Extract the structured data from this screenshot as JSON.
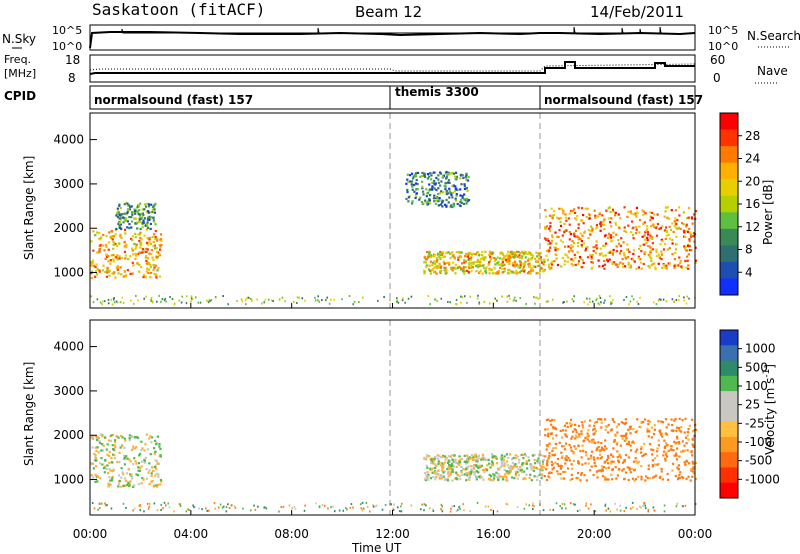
{
  "header": {
    "station": "Saskatoon (fitACF)",
    "beam": "Beam 12",
    "date": "14/Feb/2011"
  },
  "top_panels": {
    "nsky_label": "N.Sky",
    "nsky_ticks": [
      "10^5",
      "10^0"
    ],
    "nsearch_label": "N.Search",
    "nsearch_ticks": [
      "10^5",
      "10^0"
    ],
    "freq_label_1": "Freq.",
    "freq_label_2": "[MHz]",
    "freq_ticks": [
      "18",
      "8"
    ],
    "nave_label": "Nave",
    "nave_ticks": [
      "60",
      "0"
    ],
    "cpid_label": "CPID",
    "modes": [
      {
        "label": "normalsound (fast) 157",
        "start_h": 0
      },
      {
        "label": "themis 3300",
        "start_h": 12
      },
      {
        "label": "normalsound (fast) 157",
        "start_h": 18
      }
    ]
  },
  "x_axis": {
    "ticks": [
      "00:00",
      "04:00",
      "08:00",
      "12:00",
      "16:00",
      "20:00",
      "00:00"
    ],
    "tick_hours": [
      0,
      4,
      8,
      12,
      16,
      20,
      24
    ],
    "label": "Time UT"
  },
  "power_panel": {
    "ylabel": "Slant Range [km]",
    "yticks": [
      "4000",
      "3000",
      "2000",
      "1000"
    ],
    "colorbar_label": "Power [dB]",
    "colorbar_ticks": [
      "28",
      "24",
      "20",
      "16",
      "12",
      "8",
      "4"
    ],
    "colorbar_colors": [
      "#ff0000",
      "#ff3300",
      "#ff7a00",
      "#ffb000",
      "#e8d000",
      "#b6cf00",
      "#5fbf3f",
      "#3a8a58",
      "#2f6f6f",
      "#1c4fb0",
      "#1030ff"
    ]
  },
  "velocity_panel": {
    "ylabel": "Slant Range [km]",
    "yticks": [
      "4000",
      "3000",
      "2000",
      "1000"
    ],
    "colorbar_label": "Velocity [m s^-1]",
    "colorbar_ticks": [
      "1000",
      "500",
      "100",
      "25",
      "-25",
      "-100",
      "-500",
      "-1000"
    ],
    "colorbar_colors": [
      "#1a3cc8",
      "#3a6fb0",
      "#2f8a6a",
      "#4fb94f",
      "#c8c8c0",
      "#c8c8c0",
      "#ffc040",
      "#ff9a20",
      "#ff6a10",
      "#ff3000",
      "#ff0000"
    ]
  },
  "chart_data": [
    {
      "type": "heatmap",
      "title": "Power",
      "xlabel": "Time UT",
      "ylabel": "Slant Range [km]",
      "xlim": [
        0,
        24
      ],
      "ylim": [
        200,
        4600
      ],
      "colorbar_range": [
        0,
        32
      ],
      "regions": [
        {
          "t_start": 0.0,
          "t_end": 2.8,
          "range_center": 1450,
          "range_halfwidth": 550,
          "power": 22
        },
        {
          "t_start": 1.0,
          "t_end": 2.6,
          "range_center": 2300,
          "range_halfwidth": 300,
          "power": 10
        },
        {
          "t_start": 13.2,
          "t_end": 18.0,
          "range_center": 1250,
          "range_halfwidth": 250,
          "power": 20
        },
        {
          "t_start": 12.5,
          "t_end": 15.0,
          "range_center": 2900,
          "range_halfwidth": 400,
          "power": 8
        },
        {
          "t_start": 18.0,
          "t_end": 24.0,
          "range_center": 1800,
          "range_halfwidth": 700,
          "power": 24
        }
      ]
    },
    {
      "type": "heatmap",
      "title": "Velocity",
      "xlabel": "Time UT",
      "ylabel": "Slant Range [km]",
      "xlim": [
        0,
        24
      ],
      "ylim": [
        200,
        4600
      ],
      "colorbar_range": [
        -1000,
        1000
      ],
      "regions": [
        {
          "t_start": 0.0,
          "t_end": 2.8,
          "range_center": 1450,
          "range_halfwidth": 600,
          "velocity": 0
        },
        {
          "t_start": 13.2,
          "t_end": 18.0,
          "range_center": 1300,
          "range_halfwidth": 300,
          "velocity": 0
        },
        {
          "t_start": 18.0,
          "t_end": 24.0,
          "range_center": 1700,
          "range_halfwidth": 700,
          "velocity": -150
        }
      ]
    }
  ]
}
